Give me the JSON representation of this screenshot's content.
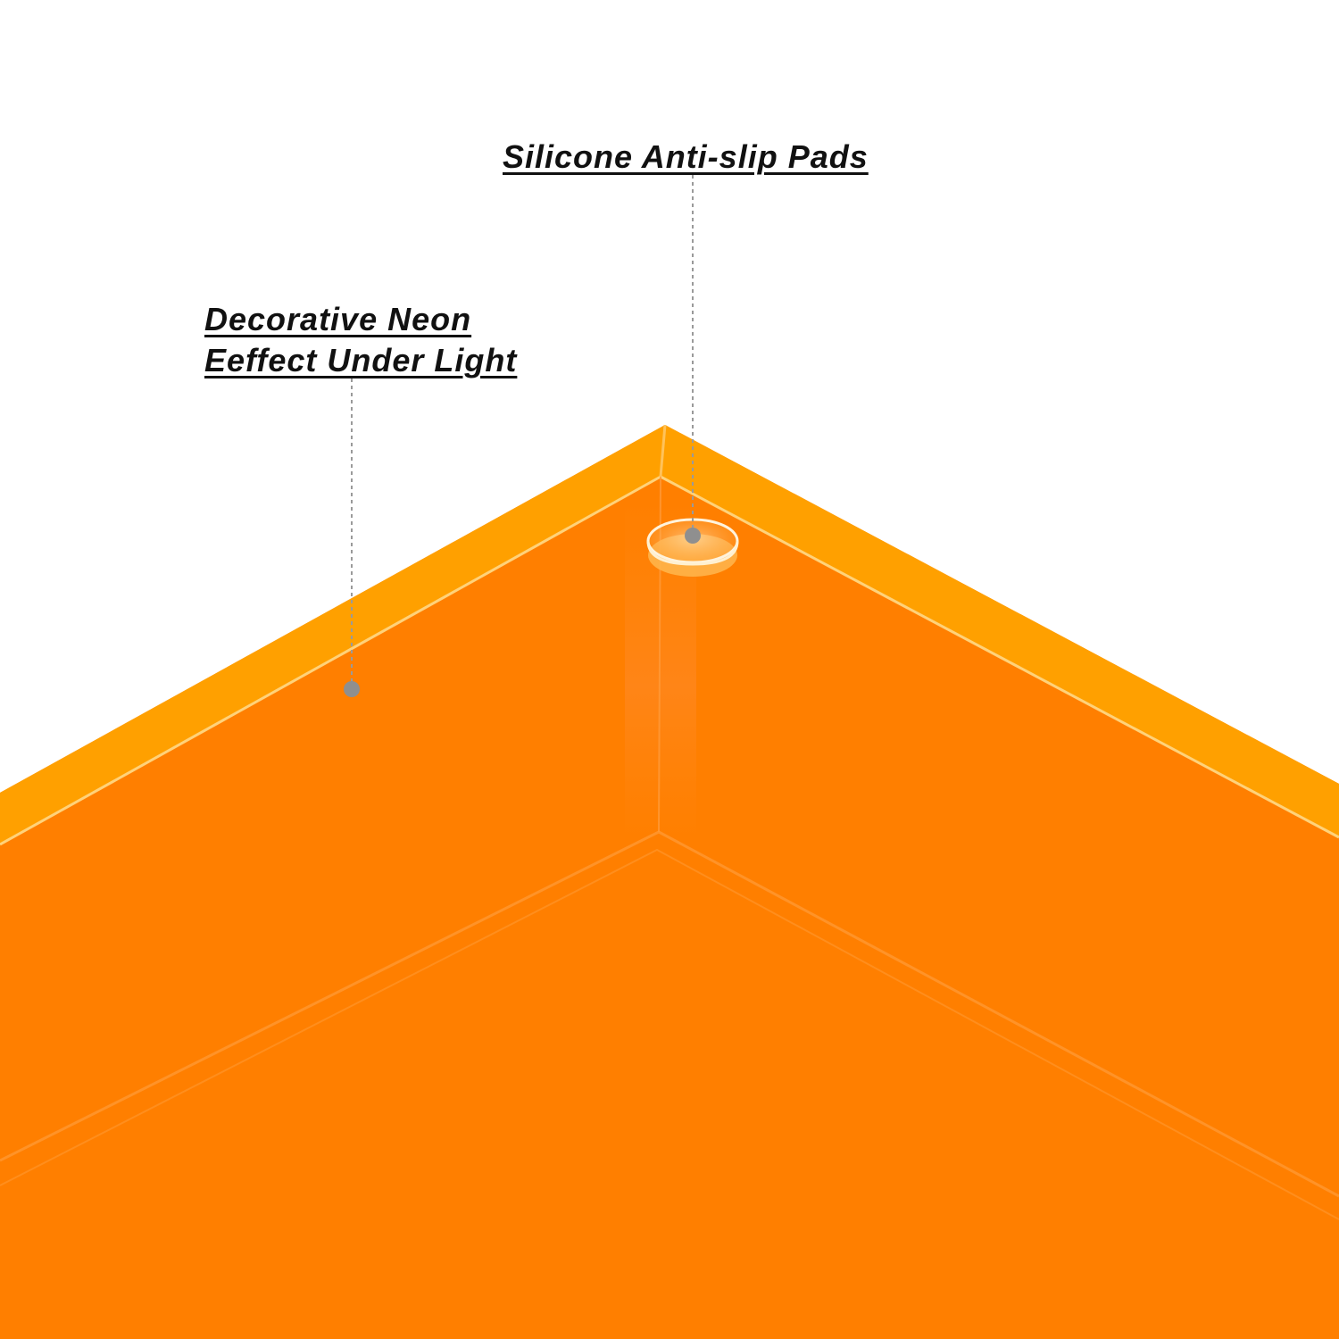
{
  "callouts": {
    "pads": {
      "label": "Silicone Anti-slip Pads"
    },
    "neon": {
      "line1": "Decorative Neon",
      "line2": "Eeffect Under Light"
    }
  },
  "colors": {
    "background": "#ffffff",
    "tray_body": "#ff7f00",
    "tray_edge": "#ffa000",
    "edge_highlight": "#ffd27a",
    "leader_line": "#9a9a9a",
    "leader_dot": "#8f8f8f",
    "label_text": "#111111"
  }
}
